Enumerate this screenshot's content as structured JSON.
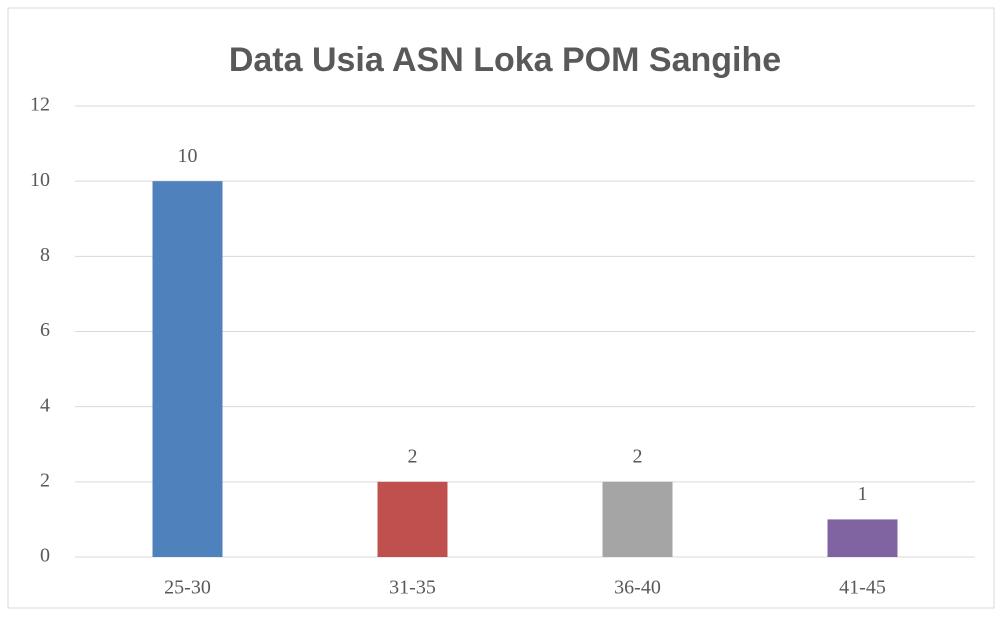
{
  "chart_data": {
    "type": "bar",
    "title": "Data Usia ASN Loka POM Sangihe",
    "categories": [
      "25-30",
      "31-35",
      "36-40",
      "41-45"
    ],
    "values": [
      10,
      2,
      2,
      1
    ],
    "colors": [
      "#4f81bd",
      "#c0504d",
      "#a5a5a5",
      "#8064a2"
    ],
    "ylim": [
      0,
      12
    ],
    "yticks": [
      0,
      2,
      4,
      6,
      8,
      10,
      12
    ],
    "grid": true
  }
}
